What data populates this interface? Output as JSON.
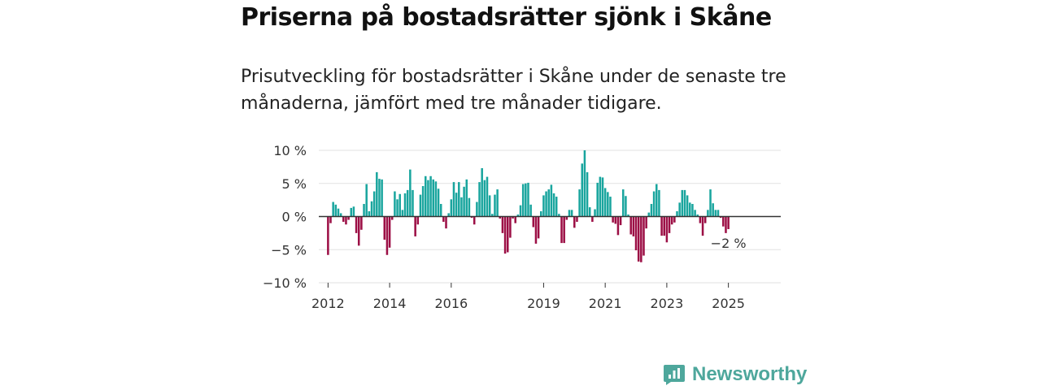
{
  "header": {
    "title": "Priserna på bostadsrätter sjönk i Skåne",
    "subtitle": "Prisutveckling för bostadsrätter i Skåne under de senaste tre månaderna, jämfört med tre månader tidigare."
  },
  "brand": {
    "name": "Newsworthy",
    "icon": "newsworthy-logo-icon",
    "color": "#4ea79c"
  },
  "colors": {
    "positive": "#19a59e",
    "negative": "#9c0f45",
    "zero_line": "#333333",
    "grid": "#e2e2e2"
  },
  "chart_data": {
    "type": "bar",
    "title": "Priserna på bostadsrätter sjönk i Skåne",
    "subtitle": "Prisutveckling för bostadsrätter i Skåne under de senaste tre månaderna, jämfört med tre månader tidigare.",
    "unit": "%",
    "xlabel": "",
    "ylabel": "",
    "ylim": [
      -10,
      10
    ],
    "xlim": [
      2011.7,
      2026.7
    ],
    "grid": true,
    "y_ticks": [
      {
        "value": 10,
        "label": "10 %"
      },
      {
        "value": 5,
        "label": "5 %"
      },
      {
        "value": 0,
        "label": "0 %"
      },
      {
        "value": -5,
        "label": "−5 %"
      },
      {
        "value": -10,
        "label": "−10 %"
      }
    ],
    "x_ticks": [
      {
        "value": 2012,
        "label": "2012"
      },
      {
        "value": 2014,
        "label": "2014"
      },
      {
        "value": 2016,
        "label": "2016"
      },
      {
        "value": 2019,
        "label": "2019"
      },
      {
        "value": 2021,
        "label": "2021"
      },
      {
        "value": 2023,
        "label": "2023"
      },
      {
        "value": 2025,
        "label": "2025"
      }
    ],
    "annotation": {
      "text": "−2 %",
      "value": -2
    },
    "x_start": 2012.0,
    "x_step": 0.083333,
    "values": [
      -5.8,
      -1.0,
      2.2,
      1.8,
      1.2,
      0.5,
      -0.8,
      -1.2,
      -0.5,
      1.3,
      1.5,
      -2.5,
      -4.4,
      -2.0,
      1.9,
      4.9,
      0.8,
      2.3,
      3.8,
      6.7,
      5.7,
      5.6,
      -3.5,
      -5.8,
      -4.7,
      -0.5,
      3.8,
      2.6,
      3.4,
      1.0,
      3.5,
      4.0,
      7.1,
      4.0,
      -3.0,
      -1.2,
      3.3,
      4.6,
      6.1,
      5.5,
      6.1,
      5.6,
      5.3,
      4.2,
      1.9,
      -0.8,
      -1.8,
      0.5,
      2.6,
      5.2,
      3.6,
      5.2,
      2.9,
      4.5,
      5.6,
      2.8,
      -0.2,
      -1.2,
      2.2,
      5.2,
      7.3,
      5.5,
      6.0,
      3.2,
      0.4,
      3.3,
      4.1,
      -0.3,
      -2.5,
      -5.6,
      -5.4,
      -3.2,
      -0.3,
      -1.0,
      0.3,
      1.7,
      4.9,
      5.0,
      5.1,
      1.8,
      -1.6,
      -4.1,
      -3.3,
      0.8,
      3.2,
      3.8,
      4.1,
      4.8,
      3.5,
      3.0,
      0.4,
      -4.0,
      -4.0,
      -0.5,
      1.0,
      1.0,
      -1.7,
      -0.8,
      4.1,
      8.0,
      10.0,
      6.7,
      1.4,
      -0.8,
      1.1,
      5.1,
      6.0,
      5.9,
      4.3,
      3.7,
      3.0,
      -0.9,
      -1.1,
      -2.8,
      -1.3,
      4.1,
      3.1,
      0.3,
      -2.7,
      -3.0,
      -5.1,
      -6.8,
      -6.9,
      -5.9,
      -1.8,
      0.6,
      1.9,
      3.8,
      4.9,
      4.0,
      -2.9,
      -2.9,
      -3.9,
      -2.5,
      -1.2,
      -0.9,
      0.8,
      2.1,
      4.0,
      4.0,
      3.2,
      2.1,
      1.9,
      1.0,
      0.3,
      -1.0,
      -2.9,
      -1.0,
      1.0,
      4.1,
      2.0,
      1.0,
      1.0,
      -0.2,
      -1.5,
      -2.5,
      -1.9
    ]
  }
}
